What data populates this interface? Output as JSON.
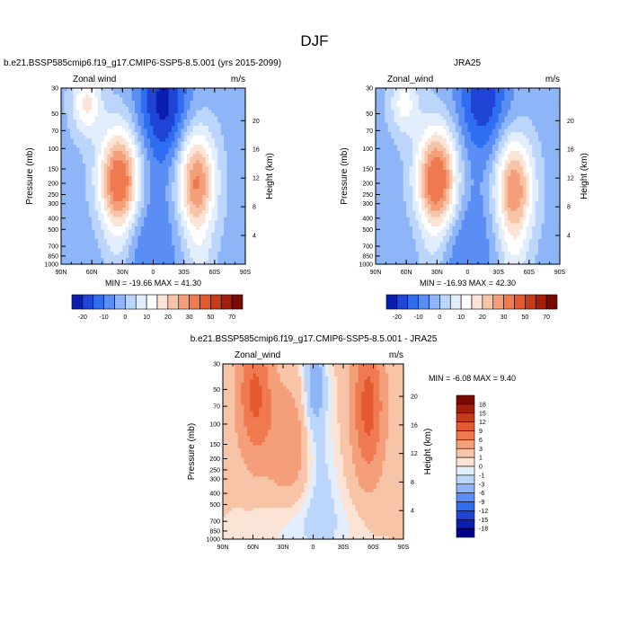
{
  "figure_title": "DJF",
  "chart_data": [
    {
      "type": "heatmap",
      "subtitle": "b.e21.BSSP585cmip6.f19_g17.CMIP6-SSP5-8.5.001 (yrs 2015-2099)",
      "left_label": "Zonal wind",
      "right_label": "m/s",
      "stats_label": "MIN = -19.66  MAX =  41.30",
      "xlabel": "",
      "ylabel": "Pressure (mb)",
      "ylabel_right": "Height (km)",
      "x_ticks": [
        "90N",
        "60N",
        "30N",
        "0",
        "30S",
        "60S",
        "90S"
      ],
      "y_ticks": [
        "30",
        "50",
        "70",
        "100",
        "150",
        "200",
        "250",
        "300",
        "400",
        "500",
        "700",
        "850",
        "1000"
      ],
      "height_ticks": [
        "4",
        "8",
        "12",
        "16",
        "20"
      ],
      "jets": [
        {
          "lat": 33,
          "p": 200,
          "value": 41.3
        },
        {
          "lat": -42,
          "p": 200,
          "value": 34
        },
        {
          "lat": 65,
          "p": 40,
          "value": 18
        },
        {
          "lat": -10,
          "p": 40,
          "value": -19.66
        }
      ],
      "colorbar": {
        "orientation": "horizontal",
        "labels": [
          "-20",
          "-10",
          "0",
          "10",
          "20",
          "30",
          "50",
          "70"
        ]
      }
    },
    {
      "type": "heatmap",
      "subtitle": "JRA25",
      "left_label": "Zonal_wind",
      "right_label": "m/s",
      "stats_label": "MIN = -16.93  MAX =  42.30",
      "xlabel": "",
      "ylabel": "Pressure (mb)",
      "ylabel_right": "Height (km)",
      "x_ticks": [
        "90N",
        "60N",
        "30N",
        "0",
        "30S",
        "60S",
        "90S"
      ],
      "y_ticks": [
        "30",
        "50",
        "70",
        "100",
        "150",
        "200",
        "250",
        "300",
        "400",
        "500",
        "700",
        "850",
        "1000"
      ],
      "height_ticks": [
        "4",
        "8",
        "12",
        "16",
        "20"
      ],
      "jets": [
        {
          "lat": 30,
          "p": 200,
          "value": 42.3
        },
        {
          "lat": -45,
          "p": 230,
          "value": 33
        },
        {
          "lat": 62,
          "p": 40,
          "value": 14
        },
        {
          "lat": -15,
          "p": 35,
          "value": -16.93
        }
      ],
      "colorbar": {
        "orientation": "horizontal",
        "labels": [
          "-20",
          "-10",
          "0",
          "10",
          "20",
          "30",
          "50",
          "70"
        ]
      }
    },
    {
      "type": "heatmap",
      "subtitle": "b.e21.BSSP585cmip6.f19_g17.CMIP6-SSP5-8.5.001 - JRA25",
      "left_label": "Zonal_wind",
      "right_label": "m/s",
      "stats_label": "MIN = -6.08  MAX =  9.40",
      "xlabel": "",
      "ylabel": "Pressure (mb)",
      "ylabel_right": "Height (km)",
      "x_ticks": [
        "90N",
        "60N",
        "30N",
        "0",
        "30S",
        "60S",
        "90S"
      ],
      "y_ticks": [
        "30",
        "50",
        "70",
        "100",
        "150",
        "200",
        "250",
        "300",
        "400",
        "500",
        "700",
        "850",
        "1000"
      ],
      "height_ticks": [
        "4",
        "8",
        "12",
        "16",
        "20"
      ],
      "max_value": 9.4,
      "min_value": -6.08,
      "colorbar": {
        "orientation": "vertical",
        "labels": [
          "18",
          "15",
          "12",
          "9",
          "6",
          "3",
          "1",
          "0",
          "-1",
          "-3",
          "-6",
          "-9",
          "-12",
          "-15",
          "-18"
        ]
      }
    }
  ],
  "colors": {
    "top_palette": [
      "#00008b",
      "#0a1fb0",
      "#1f44d6",
      "#2f6ef0",
      "#5b8ef5",
      "#8db5f8",
      "#bcd6fb",
      "#e3eefc",
      "#ffffff",
      "#fbe3d6",
      "#f8c4a8",
      "#f59e7a",
      "#f07a50",
      "#e45a30",
      "#c53a1a",
      "#a21e0a",
      "#7a0a00"
    ],
    "diff_palette": [
      "#7a0a00",
      "#a21e0a",
      "#c53a1a",
      "#e45a30",
      "#f07a50",
      "#f59e7a",
      "#f8c4a8",
      "#fbe3d6",
      "#e3eefc",
      "#bcd6fb",
      "#8db5f8",
      "#5b8ef5",
      "#2f6ef0",
      "#1f44d6",
      "#0a1fb0",
      "#00008b"
    ]
  }
}
